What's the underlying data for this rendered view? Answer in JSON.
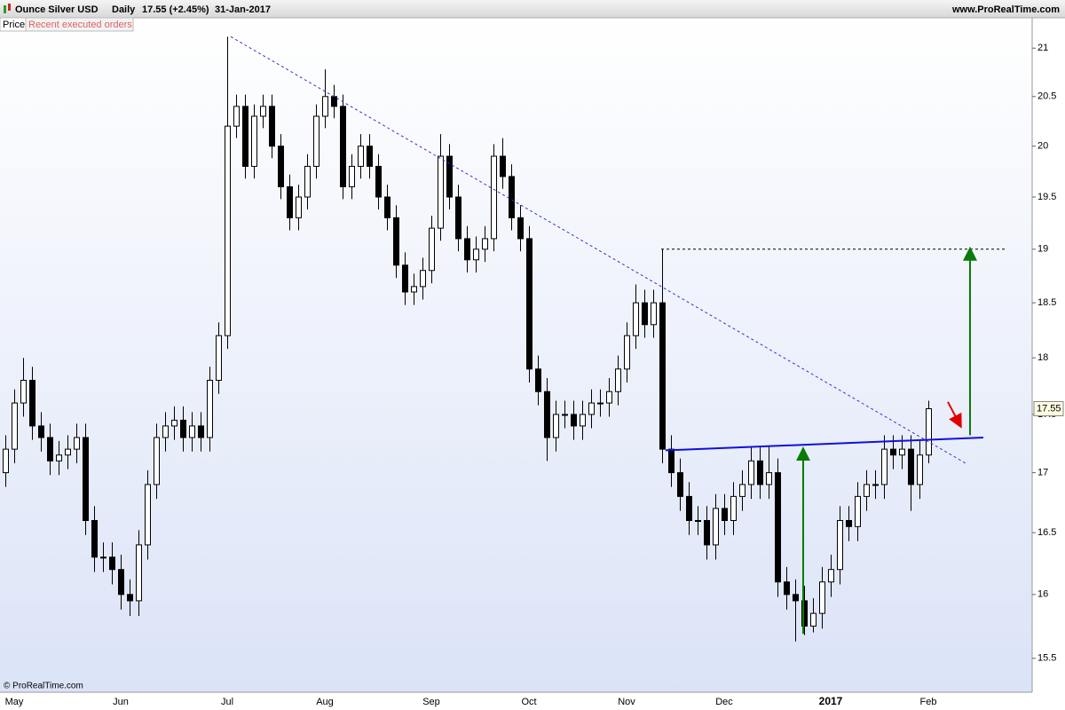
{
  "header": {
    "title": "Ounce Silver USD",
    "period": "Daily",
    "quote": "17.55 (+2.45%)",
    "date": "31-Jan-2017",
    "site": "www.ProRealTime.com"
  },
  "tabs": [
    "Price",
    "Recent executed orders"
  ],
  "footer": "© ProRealTime.com",
  "chart_data": {
    "type": "candlestick",
    "log": true,
    "ylim": [
      15.24,
      21.32
    ],
    "yticks": [
      15.5,
      16,
      16.5,
      17,
      17.5,
      18,
      18.5,
      19,
      19.5,
      20,
      20.5,
      21
    ],
    "last_price": 17.55,
    "categories": [
      null,
      "May",
      null,
      null,
      null,
      null,
      null,
      null,
      null,
      null,
      null,
      null,
      null,
      "Jun",
      null,
      null,
      null,
      null,
      null,
      null,
      null,
      null,
      null,
      null,
      null,
      "Jul",
      null,
      null,
      null,
      null,
      null,
      null,
      null,
      null,
      null,
      null,
      "Aug",
      null,
      null,
      null,
      null,
      null,
      null,
      null,
      null,
      null,
      null,
      null,
      "Sep",
      null,
      null,
      null,
      null,
      null,
      null,
      null,
      null,
      null,
      null,
      "Oct",
      null,
      null,
      null,
      null,
      null,
      null,
      null,
      null,
      null,
      null,
      "Nov",
      null,
      null,
      null,
      null,
      null,
      null,
      null,
      null,
      null,
      null,
      "Dec",
      null,
      null,
      null,
      null,
      null,
      null,
      null,
      null,
      null,
      null,
      null,
      "2017",
      null,
      null,
      null,
      null,
      null,
      null,
      null,
      null,
      null,
      null,
      "Feb"
    ],
    "open": [
      17.0,
      17.2,
      17.6,
      17.8,
      17.4,
      17.3,
      17.1,
      17.15,
      17.2,
      17.3,
      16.6,
      16.3,
      16.3,
      16.2,
      16.0,
      15.95,
      16.4,
      16.9,
      17.3,
      17.4,
      17.45,
      17.3,
      17.4,
      17.3,
      17.8,
      18.2,
      20.2,
      20.4,
      19.8,
      20.3,
      20.4,
      20.0,
      19.6,
      19.3,
      19.5,
      19.8,
      20.3,
      20.5,
      20.4,
      19.6,
      19.8,
      20.0,
      19.8,
      19.5,
      19.3,
      18.85,
      18.6,
      18.65,
      18.8,
      19.2,
      19.9,
      19.5,
      19.1,
      18.9,
      19.0,
      19.1,
      19.9,
      19.7,
      19.3,
      19.1,
      17.9,
      17.7,
      17.3,
      17.5,
      17.5,
      17.4,
      17.5,
      17.6,
      17.6,
      17.7,
      17.9,
      18.2,
      18.5,
      18.3,
      18.5,
      17.2,
      17.0,
      16.8,
      16.6,
      16.6,
      16.4,
      16.7,
      16.6,
      16.8,
      16.9,
      17.1,
      16.9,
      17.0,
      16.1,
      16.0,
      15.95,
      15.75,
      15.85,
      16.1,
      16.2,
      16.6,
      16.55,
      16.8,
      16.9,
      16.9,
      17.2,
      17.15,
      17.2,
      16.9,
      17.15
    ],
    "high": [
      17.32,
      17.72,
      18.0,
      17.92,
      17.52,
      17.42,
      17.27,
      17.32,
      17.42,
      17.42,
      16.72,
      16.42,
      16.42,
      16.32,
      16.12,
      16.52,
      17.02,
      17.42,
      17.52,
      17.57,
      17.57,
      17.52,
      17.52,
      17.92,
      18.32,
      21.12,
      20.52,
      20.52,
      20.42,
      20.52,
      20.52,
      20.12,
      19.72,
      19.62,
      19.92,
      20.42,
      20.78,
      20.62,
      20.52,
      19.92,
      20.12,
      20.12,
      19.92,
      19.62,
      19.42,
      18.97,
      18.77,
      18.92,
      19.32,
      20.12,
      20.02,
      19.62,
      19.22,
      19.12,
      19.22,
      20.02,
      20.08,
      19.82,
      19.42,
      19.22,
      18.02,
      17.82,
      17.62,
      17.62,
      17.62,
      17.62,
      17.72,
      17.72,
      17.82,
      18.02,
      18.32,
      18.67,
      18.62,
      18.62,
      19.0,
      17.32,
      17.12,
      16.92,
      16.72,
      16.72,
      16.82,
      16.82,
      16.92,
      17.02,
      17.22,
      17.22,
      17.22,
      17.12,
      16.22,
      16.12,
      16.07,
      15.97,
      16.22,
      16.32,
      16.72,
      16.72,
      16.92,
      17.02,
      17.02,
      17.32,
      17.32,
      17.32,
      17.32,
      17.27,
      17.62
    ],
    "low": [
      16.88,
      17.08,
      17.48,
      17.28,
      17.18,
      16.98,
      16.98,
      17.03,
      17.08,
      16.48,
      16.18,
      16.18,
      16.08,
      15.88,
      15.83,
      15.83,
      16.28,
      16.78,
      17.18,
      17.28,
      17.18,
      17.18,
      17.18,
      17.18,
      17.68,
      18.08,
      20.08,
      19.68,
      19.68,
      20.18,
      19.88,
      19.48,
      19.18,
      19.18,
      19.38,
      19.68,
      20.18,
      20.28,
      19.48,
      19.48,
      19.68,
      19.68,
      19.38,
      19.18,
      18.73,
      18.48,
      18.48,
      18.53,
      18.68,
      19.08,
      19.38,
      18.98,
      18.78,
      18.78,
      18.88,
      18.98,
      19.58,
      19.18,
      18.98,
      17.78,
      17.58,
      17.1,
      17.18,
      17.38,
      17.28,
      17.28,
      17.38,
      17.48,
      17.48,
      17.58,
      17.78,
      18.08,
      18.18,
      18.18,
      17.08,
      16.88,
      16.68,
      16.48,
      16.48,
      16.28,
      16.28,
      16.48,
      16.48,
      16.68,
      16.78,
      16.78,
      16.78,
      15.98,
      15.88,
      15.63,
      15.68,
      15.7,
      15.73,
      15.98,
      16.08,
      16.43,
      16.43,
      16.68,
      16.78,
      16.78,
      17.03,
      17.03,
      16.68,
      16.78,
      17.08
    ],
    "close": [
      17.2,
      17.6,
      17.8,
      17.4,
      17.3,
      17.1,
      17.15,
      17.2,
      17.3,
      16.6,
      16.3,
      16.3,
      16.2,
      16.0,
      15.95,
      16.4,
      16.9,
      17.3,
      17.4,
      17.45,
      17.3,
      17.4,
      17.3,
      17.8,
      18.2,
      20.2,
      20.4,
      19.8,
      20.3,
      20.4,
      20.0,
      19.6,
      19.3,
      19.5,
      19.8,
      20.3,
      20.5,
      20.4,
      19.6,
      19.8,
      20.0,
      19.8,
      19.5,
      19.3,
      18.85,
      18.6,
      18.65,
      18.8,
      19.2,
      19.9,
      19.5,
      19.1,
      18.9,
      19.0,
      19.1,
      19.9,
      19.7,
      19.3,
      19.1,
      17.9,
      17.7,
      17.3,
      17.5,
      17.5,
      17.4,
      17.5,
      17.6,
      17.6,
      17.7,
      17.9,
      18.2,
      18.5,
      18.3,
      18.5,
      17.2,
      17.0,
      16.8,
      16.6,
      16.6,
      16.4,
      16.7,
      16.6,
      16.8,
      16.9,
      17.1,
      16.9,
      17.0,
      16.1,
      16.0,
      15.95,
      15.75,
      15.85,
      16.1,
      16.2,
      16.6,
      16.55,
      16.8,
      16.9,
      16.9,
      17.2,
      17.15,
      17.2,
      16.9,
      17.15,
      17.55
    ],
    "up_color": "#ffffff",
    "down_color": "#000000",
    "annotations": {
      "downtrend": [
        21.12,
        17.08
      ],
      "resistance": 19.0,
      "neckline": [
        17.19,
        17.3
      ],
      "target_arrows": [
        [
          15.69,
          17.2
        ],
        [
          17.32,
          19.0
        ]
      ],
      "signal_arrow": [
        17.61,
        17.41
      ]
    }
  }
}
